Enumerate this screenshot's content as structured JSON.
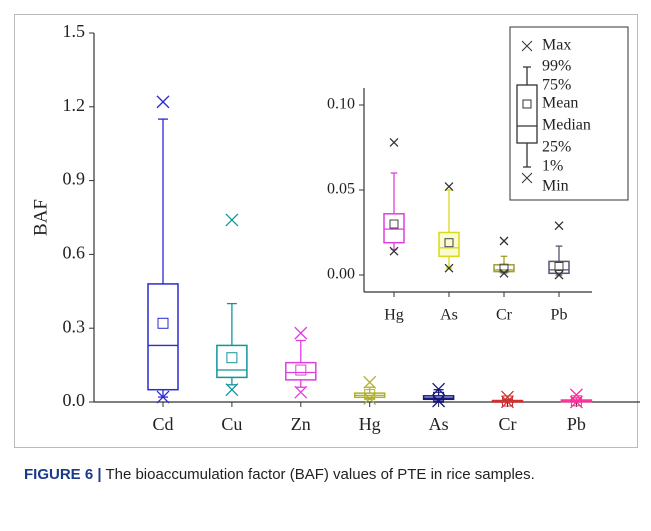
{
  "chart_data": [
    {
      "type": "box",
      "ylabel": "BAF",
      "categories": [
        "Cd",
        "Cu",
        "Zn",
        "Hg",
        "As",
        "Cr",
        "Pb"
      ],
      "colors": [
        "#2a2ad0",
        "#11959a",
        "#e03ee0",
        "#b0b02a",
        "#161680",
        "#cc3333",
        "#ff2a9a"
      ],
      "max": [
        1.22,
        0.74,
        0.28,
        0.08,
        0.052,
        0.02,
        0.029
      ],
      "p99": [
        1.15,
        0.4,
        0.25,
        0.06,
        0.05,
        0.011,
        0.017
      ],
      "p75": [
        0.48,
        0.23,
        0.16,
        0.036,
        0.025,
        0.006,
        0.008
      ],
      "mean": [
        0.32,
        0.18,
        0.13,
        0.03,
        0.019,
        0.004,
        0.005
      ],
      "median": [
        0.23,
        0.13,
        0.12,
        0.027,
        0.016,
        0.003,
        0.003
      ],
      "p25": [
        0.05,
        0.1,
        0.09,
        0.019,
        0.011,
        0.002,
        0.001
      ],
      "p1": [
        0.02,
        0.07,
        0.06,
        0.015,
        0.004,
        0.001,
        0
      ],
      "min": [
        0.02,
        0.05,
        0.04,
        0.014,
        0.004,
        0.001,
        0
      ],
      "ylim": [
        0,
        1.5
      ],
      "yticks": [
        {
          "value": 0,
          "label": "0.0"
        },
        0.3,
        0.6,
        0.9,
        1.2,
        1.5
      ],
      "legend": "upper right",
      "legend_labels": [
        "Max",
        "99%",
        "75%",
        "Mean",
        "Median",
        "25%",
        "1%",
        "Min"
      ]
    },
    {
      "type": "box",
      "categories": [
        "Hg",
        "As",
        "Cr",
        "Pb"
      ],
      "colors": [
        "#e03ee0",
        "#d8d820",
        "#a0a030",
        "#555570"
      ],
      "max": [
        0.078,
        0.052,
        0.02,
        0.029
      ],
      "p99": [
        0.06,
        0.05,
        0.011,
        0.017
      ],
      "p75": [
        0.036,
        0.025,
        0.006,
        0.008
      ],
      "mean": [
        0.03,
        0.019,
        0.004,
        0.005
      ],
      "median": [
        0.027,
        0.016,
        0.003,
        0.003
      ],
      "p25": [
        0.019,
        0.011,
        0.002,
        0.001
      ],
      "p1": [
        0.015,
        0.004,
        0.001,
        0
      ],
      "min": [
        0.014,
        0.004,
        0.001,
        0
      ],
      "ylim": [
        -0.01,
        0.1
      ],
      "yticks": [
        {
          "value": 0,
          "label": "0.00"
        },
        {
          "value": 0.05,
          "label": "0.05"
        },
        {
          "value": 0.1,
          "label": "0.10"
        }
      ]
    }
  ],
  "caption": {
    "label": "FIGURE 6 |",
    "text": "The bioaccumulation factor (BAF) values of PTE in rice samples."
  }
}
